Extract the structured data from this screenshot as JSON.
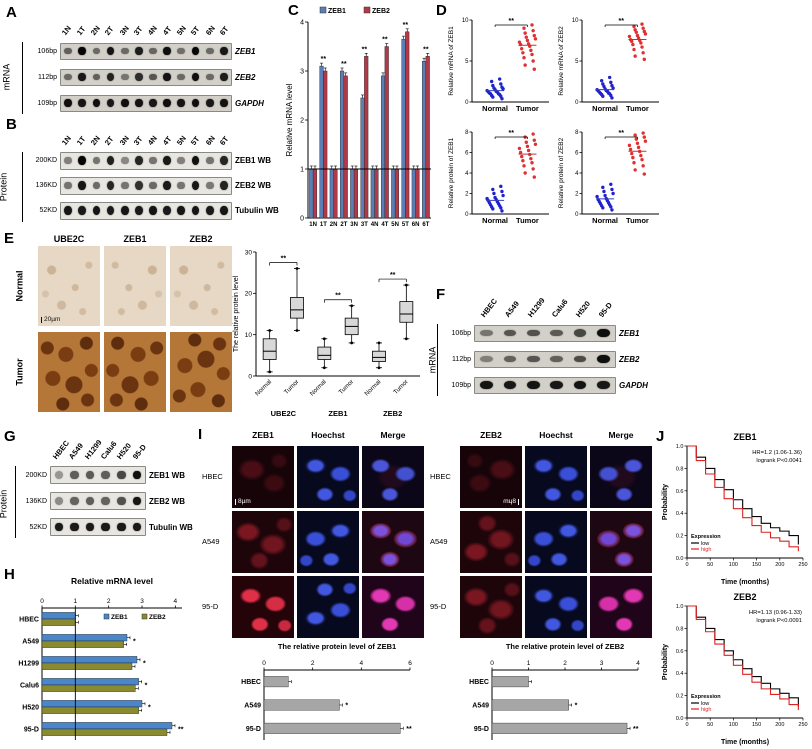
{
  "panelA": {
    "label": "A",
    "side_label": "mRNA",
    "lanes": [
      "1N",
      "1T",
      "2N",
      "2T",
      "3N",
      "3T",
      "4N",
      "4T",
      "5N",
      "5T",
      "6N",
      "6T"
    ],
    "rows": [
      {
        "size": "106bp",
        "gene": "ZEB1",
        "italic": true,
        "bands": [
          0.55,
          1,
          0.5,
          0.92,
          0.5,
          0.88,
          0.52,
          0.95,
          0.48,
          1,
          0.5,
          0.9
        ]
      },
      {
        "size": "112bp",
        "gene": "ZEB2",
        "italic": true,
        "bands": [
          0.5,
          0.9,
          0.55,
          0.85,
          0.45,
          0.8,
          0.6,
          0.92,
          0.5,
          0.95,
          0.5,
          0.88
        ]
      },
      {
        "size": "109bp",
        "gene": "GAPDH",
        "italic": true,
        "bands": [
          0.95,
          0.92,
          0.95,
          0.9,
          0.95,
          0.93,
          0.9,
          0.95,
          0.92,
          0.95,
          0.9,
          0.93
        ]
      }
    ]
  },
  "panelB": {
    "label": "B",
    "side_label": "Protein",
    "lanes": [
      "1N",
      "1T",
      "2N",
      "2T",
      "3N",
      "3T",
      "4N",
      "4T",
      "5N",
      "5T",
      "6N",
      "6T"
    ],
    "rows": [
      {
        "size": "200KD",
        "gene": "ZEB1 WB",
        "italic": false,
        "bands": [
          0.45,
          1,
          0.5,
          0.88,
          0.42,
          0.85,
          0.5,
          0.9,
          0.45,
          0.95,
          0.5,
          0.85
        ]
      },
      {
        "size": "136KD",
        "gene": "ZEB2 WB",
        "italic": false,
        "bands": [
          0.5,
          0.92,
          0.55,
          0.85,
          0.5,
          0.8,
          0.55,
          0.9,
          0.5,
          0.92,
          0.48,
          0.86
        ]
      },
      {
        "size": "52KD",
        "gene": "Tubulin WB",
        "italic": false,
        "bands": [
          0.92,
          0.9,
          0.93,
          0.9,
          0.92,
          0.9,
          0.93,
          0.9,
          0.92,
          0.93,
          0.9,
          0.92
        ]
      }
    ]
  },
  "panelC": {
    "label": "C"
  },
  "panelD": {
    "label": "D"
  },
  "panelE": {
    "label": "E",
    "columns": [
      "UBE2C",
      "ZEB1",
      "ZEB2"
    ],
    "rows": [
      "Normal",
      "Tumor"
    ],
    "scale_bar": "20µm"
  },
  "panelF": {
    "label": "F",
    "side_label": "mRNA",
    "lanes": [
      "HBEC",
      "A549",
      "H1299",
      "Calu6",
      "H520",
      "95-D"
    ],
    "rows": [
      {
        "size": "106bp",
        "gene": "ZEB1",
        "italic": true,
        "bands": [
          0.45,
          0.6,
          0.62,
          0.58,
          0.68,
          0.95
        ]
      },
      {
        "size": "112bp",
        "gene": "ZEB2",
        "italic": true,
        "bands": [
          0.4,
          0.55,
          0.6,
          0.55,
          0.65,
          0.95
        ]
      },
      {
        "size": "109bp",
        "gene": "GAPDH",
        "italic": true,
        "bands": [
          0.92,
          0.9,
          0.92,
          0.9,
          0.92,
          0.9
        ]
      }
    ]
  },
  "panelG": {
    "label": "G",
    "side_label": "Protein",
    "lanes": [
      "HBEC",
      "A549",
      "H1299",
      "Calu6",
      "H520",
      "95-D"
    ],
    "rows": [
      {
        "size": "200KD",
        "gene": "ZEB1 WB",
        "italic": false,
        "bands": [
          0.35,
          0.6,
          0.62,
          0.6,
          0.7,
          0.95
        ]
      },
      {
        "size": "136KD",
        "gene": "ZEB2 WB",
        "italic": false,
        "bands": [
          0.4,
          0.58,
          0.6,
          0.58,
          0.66,
          0.92
        ]
      },
      {
        "size": "52KD",
        "gene": "Tubulin WB",
        "italic": false,
        "bands": [
          0.9,
          0.9,
          0.9,
          0.9,
          0.9,
          0.9
        ]
      }
    ]
  },
  "panelH": {
    "label": "H"
  },
  "panelI": {
    "label": "I",
    "grids": [
      {
        "columns": [
          "ZEB1",
          "Hoechst",
          "Merge"
        ],
        "rows": [
          "HBEC",
          "A549",
          "95-D"
        ],
        "scale_bar": "8µm"
      },
      {
        "columns": [
          "ZEB2",
          "Hoechst",
          "Merge"
        ],
        "rows": [
          "HBEC",
          "A549",
          "95-D"
        ],
        "scale_bar": "8µm"
      }
    ]
  },
  "panelJ": {
    "label": "J"
  },
  "chart_data": [
    {
      "id": "C",
      "type": "bar",
      "title": "",
      "ylabel": "Relative mRNA level",
      "ylim": [
        0,
        4
      ],
      "yticks": [
        0,
        1,
        2,
        3,
        4
      ],
      "categories": [
        "1N",
        "1T",
        "2N",
        "2T",
        "3N",
        "3T",
        "4N",
        "4T",
        "5N",
        "5T",
        "6N",
        "6T"
      ],
      "series": [
        {
          "name": "ZEB1",
          "color": "#5b7fb4",
          "values": [
            1,
            3.1,
            1,
            3.0,
            1,
            2.45,
            1,
            2.9,
            1,
            3.65,
            1,
            3.2
          ]
        },
        {
          "name": "ZEB2",
          "color": "#b23a48",
          "values": [
            1,
            3.0,
            1,
            2.9,
            1,
            3.3,
            1,
            3.5,
            1,
            3.8,
            1,
            3.3
          ]
        }
      ],
      "sig": [
        "",
        "**",
        "",
        "**",
        "",
        "**",
        "",
        "**",
        "",
        "**",
        "",
        "**"
      ],
      "baseline": 1
    },
    {
      "id": "D1",
      "type": "scatter",
      "ylabel": "Relative mRNA of ZEB1",
      "ylim": [
        0,
        10
      ],
      "yticks": [
        0,
        5,
        10
      ],
      "sig": "**",
      "groups": [
        {
          "name": "Normal",
          "color": "#2222cc",
          "values": [
            0.4,
            0.6,
            0.7,
            0.8,
            0.9,
            1.0,
            1.0,
            1.1,
            1.2,
            1.25,
            1.3,
            1.4,
            1.5,
            1.6,
            1.7,
            1.8,
            2.0,
            2.2,
            2.5,
            2.8
          ]
        },
        {
          "name": "Tumor",
          "color": "#e03030",
          "values": [
            4.0,
            4.5,
            5.0,
            5.4,
            5.8,
            6.0,
            6.3,
            6.5,
            6.8,
            7.0,
            7.1,
            7.3,
            7.5,
            7.7,
            7.9,
            8.1,
            8.4,
            8.7,
            9.0,
            9.4
          ]
        }
      ]
    },
    {
      "id": "D2",
      "type": "scatter",
      "ylabel": "Relative mRNA of ZEB2",
      "ylim": [
        0,
        10
      ],
      "yticks": [
        0,
        5,
        10
      ],
      "sig": "**",
      "groups": [
        {
          "name": "Normal",
          "color": "#2222cc",
          "values": [
            0.5,
            0.7,
            0.8,
            0.9,
            1.0,
            1.05,
            1.1,
            1.2,
            1.3,
            1.35,
            1.4,
            1.5,
            1.6,
            1.7,
            1.9,
            2.0,
            2.2,
            2.4,
            2.6,
            3.0
          ]
        },
        {
          "name": "Tumor",
          "color": "#e03030",
          "values": [
            5.2,
            5.6,
            6.0,
            6.4,
            6.7,
            7.0,
            7.2,
            7.4,
            7.5,
            7.6,
            7.8,
            8.0,
            8.1,
            8.3,
            8.5,
            8.6,
            8.8,
            9.0,
            9.2,
            9.5
          ]
        }
      ]
    },
    {
      "id": "D3",
      "type": "scatter",
      "ylabel": "Relative protein of ZEB1",
      "ylim": [
        0,
        8
      ],
      "yticks": [
        0,
        2,
        4,
        6,
        8
      ],
      "sig": "**",
      "groups": [
        {
          "name": "Normal",
          "color": "#2222cc",
          "values": [
            0.3,
            0.5,
            0.6,
            0.7,
            0.8,
            0.9,
            1.0,
            1.1,
            1.2,
            1.3,
            1.4,
            1.5,
            1.6,
            1.8,
            2.0,
            2.2,
            2.4,
            2.7
          ]
        },
        {
          "name": "Tumor",
          "color": "#e03030",
          "values": [
            3.6,
            4.0,
            4.4,
            4.7,
            5.0,
            5.2,
            5.4,
            5.6,
            5.8,
            6.0,
            6.2,
            6.4,
            6.6,
            6.8,
            7.0,
            7.2,
            7.5,
            7.8
          ]
        }
      ]
    },
    {
      "id": "D4",
      "type": "scatter",
      "ylabel": "Relative protein of ZEB2",
      "ylim": [
        0,
        8
      ],
      "yticks": [
        0,
        2,
        4,
        6,
        8
      ],
      "sig": "**",
      "groups": [
        {
          "name": "Normal",
          "color": "#2222cc",
          "values": [
            0.4,
            0.6,
            0.7,
            0.8,
            0.9,
            1.0,
            1.1,
            1.2,
            1.3,
            1.4,
            1.5,
            1.7,
            1.8,
            2.0,
            2.2,
            2.4,
            2.6,
            2.9
          ]
        },
        {
          "name": "Tumor",
          "color": "#e03030",
          "values": [
            3.9,
            4.3,
            4.7,
            5.0,
            5.3,
            5.5,
            5.7,
            5.9,
            6.1,
            6.3,
            6.5,
            6.7,
            6.9,
            7.1,
            7.3,
            7.5,
            7.7,
            7.9
          ]
        }
      ]
    },
    {
      "id": "E",
      "type": "box",
      "ylabel": "The relative protein level",
      "ylim": [
        0,
        30
      ],
      "yticks": [
        0,
        10,
        20,
        30
      ],
      "groups": [
        "UBE2C",
        "ZEB1",
        "ZEB2"
      ],
      "sig": [
        "**",
        "**",
        "**"
      ],
      "boxes": [
        {
          "group": "UBE2C",
          "label": "Normal",
          "low": 1,
          "q1": 4,
          "median": 6,
          "q3": 9,
          "high": 11
        },
        {
          "group": "UBE2C",
          "label": "Tumor",
          "low": 11,
          "q1": 14,
          "median": 16,
          "q3": 19,
          "high": 26
        },
        {
          "group": "ZEB1",
          "label": "Normal",
          "low": 2,
          "q1": 4,
          "median": 5,
          "q3": 7,
          "high": 9
        },
        {
          "group": "ZEB1",
          "label": "Tumor",
          "low": 8,
          "q1": 10,
          "median": 12,
          "q3": 14,
          "high": 17
        },
        {
          "group": "ZEB2",
          "label": "Normal",
          "low": 2,
          "q1": 3.5,
          "median": 4.5,
          "q3": 6,
          "high": 8
        },
        {
          "group": "ZEB2",
          "label": "Tumor",
          "low": 9,
          "q1": 13,
          "median": 15,
          "q3": 18,
          "high": 22
        }
      ]
    },
    {
      "id": "H",
      "type": "hbar",
      "title": "Relative mRNA level",
      "xlim": [
        0,
        4.2
      ],
      "xticks": [
        0,
        1,
        2,
        3,
        4
      ],
      "categories": [
        "HBEC",
        "A549",
        "H1299",
        "Calu6",
        "H520",
        "95-D"
      ],
      "series": [
        {
          "name": "ZEB1",
          "color": "#4a86c8",
          "values": [
            1.0,
            2.55,
            2.85,
            2.9,
            3.0,
            3.9
          ]
        },
        {
          "name": "ZEB2",
          "color": "#8a8b30",
          "values": [
            1.0,
            2.45,
            2.7,
            2.8,
            2.9,
            3.75
          ]
        }
      ],
      "sig": [
        "",
        "*",
        "*",
        "*",
        "*",
        "**"
      ],
      "baseline": 1
    },
    {
      "id": "I1",
      "type": "hbar",
      "title": "The relative protein level of ZEB1",
      "xlim": [
        0,
        6
      ],
      "xticks": [
        0,
        2,
        4,
        6
      ],
      "categories": [
        "HBEC",
        "A549",
        "95-D"
      ],
      "series": [
        {
          "name": "",
          "color": "#a6a6a6",
          "values": [
            1.0,
            3.1,
            5.6
          ]
        }
      ],
      "sig": [
        "",
        "*",
        "**"
      ]
    },
    {
      "id": "I2",
      "type": "hbar",
      "title": "The relative protein level of ZEB2",
      "xlim": [
        0,
        4
      ],
      "xticks": [
        0,
        1,
        2,
        3,
        4
      ],
      "categories": [
        "HBEC",
        "A549",
        "95-D"
      ],
      "series": [
        {
          "name": "",
          "color": "#a6a6a6",
          "values": [
            1.0,
            2.1,
            3.7
          ]
        }
      ],
      "sig": [
        "",
        "*",
        "**"
      ]
    },
    {
      "id": "J1",
      "type": "line",
      "title": "ZEB1",
      "annotation": [
        "HR=1.2 (1.06-1.36)",
        "logrank P<0.0041"
      ],
      "xlabel": "Time (months)",
      "ylabel": "Probability",
      "xlim": [
        0,
        250
      ],
      "ylim": [
        0,
        1
      ],
      "xticks": [
        0,
        50,
        100,
        150,
        200,
        250
      ],
      "yticks": [
        0,
        0.2,
        0.4,
        0.6,
        0.8,
        1
      ],
      "legend_title": "Expression",
      "series": [
        {
          "name": "low",
          "color": "#000000",
          "x": [
            0,
            20,
            40,
            60,
            80,
            100,
            120,
            140,
            160,
            180,
            200,
            220,
            240
          ],
          "y": [
            1.0,
            0.9,
            0.8,
            0.7,
            0.61,
            0.52,
            0.44,
            0.37,
            0.31,
            0.27,
            0.24,
            0.2,
            0.12
          ]
        },
        {
          "name": "high",
          "color": "#dd2222",
          "x": [
            0,
            20,
            40,
            60,
            80,
            100,
            120,
            140,
            160,
            180,
            200,
            220,
            240
          ],
          "y": [
            1.0,
            0.87,
            0.75,
            0.63,
            0.53,
            0.44,
            0.36,
            0.29,
            0.23,
            0.18,
            0.15,
            0.1,
            0.06
          ]
        }
      ]
    },
    {
      "id": "J2",
      "type": "line",
      "title": "ZEB2",
      "annotation": [
        "HR=1.13 (0.96-1.33)",
        "logrank P<0.0091"
      ],
      "xlabel": "Time (months)",
      "ylabel": "Probability",
      "xlim": [
        0,
        250
      ],
      "ylim": [
        0,
        1
      ],
      "xticks": [
        0,
        50,
        100,
        150,
        200,
        250
      ],
      "yticks": [
        0,
        0.2,
        0.4,
        0.6,
        0.8,
        1
      ],
      "legend_title": "Expression",
      "series": [
        {
          "name": "low",
          "color": "#000000",
          "x": [
            0,
            20,
            40,
            60,
            80,
            100,
            120,
            140,
            160,
            180,
            200,
            220,
            240
          ],
          "y": [
            1.0,
            0.9,
            0.8,
            0.7,
            0.6,
            0.52,
            0.44,
            0.37,
            0.31,
            0.26,
            0.22,
            0.18,
            0.1
          ]
        },
        {
          "name": "high",
          "color": "#dd2222",
          "x": [
            0,
            20,
            40,
            60,
            80,
            100,
            120,
            140,
            160,
            180,
            200,
            220,
            240
          ],
          "y": [
            1.0,
            0.88,
            0.77,
            0.66,
            0.56,
            0.47,
            0.39,
            0.32,
            0.26,
            0.21,
            0.17,
            0.12,
            0.07
          ]
        }
      ]
    }
  ]
}
